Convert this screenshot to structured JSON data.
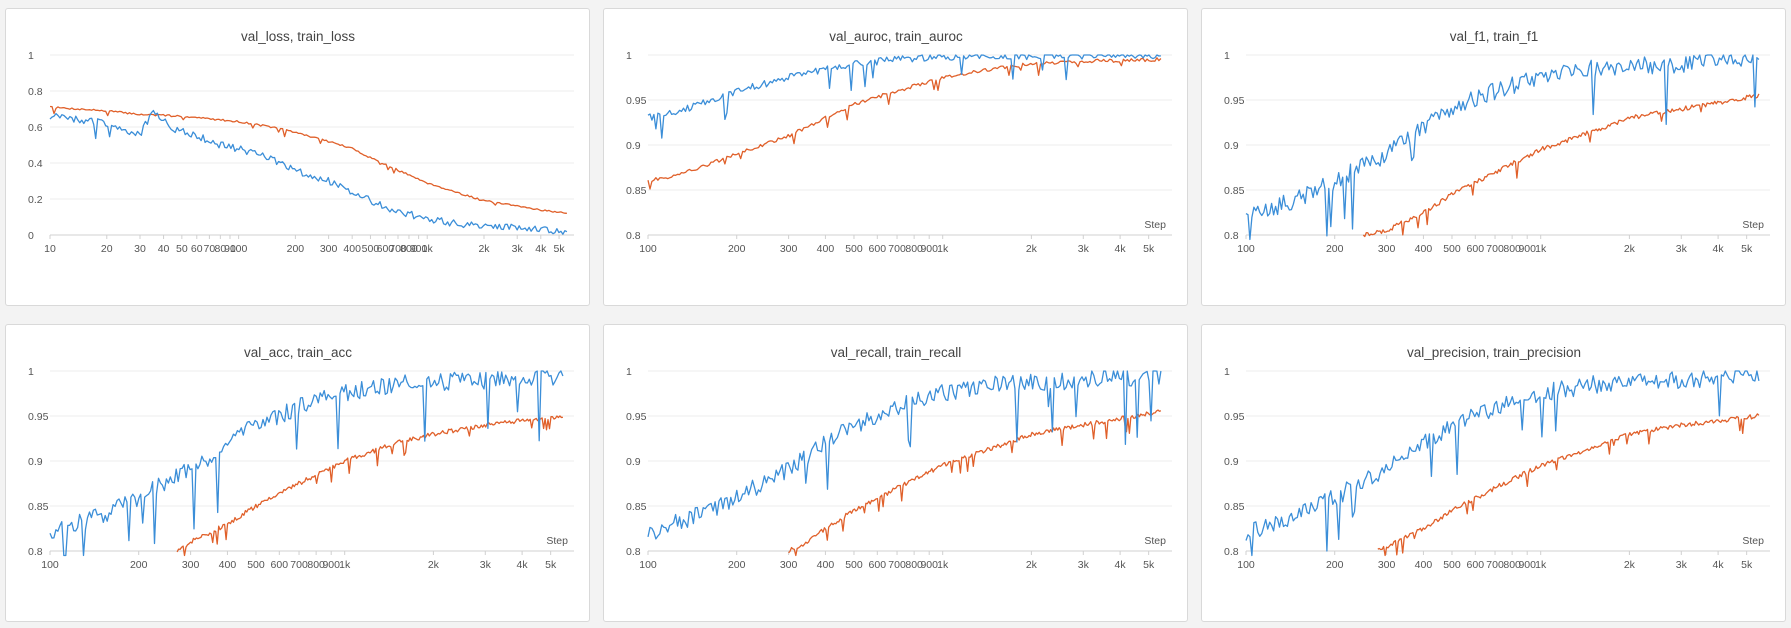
{
  "colors": {
    "val": "#3b8ed8",
    "train": "#e0602a"
  },
  "step_label": "Step",
  "chart_data": [
    {
      "type": "line",
      "title": "val_loss, train_loss",
      "xscale": "log",
      "xlim": [
        10,
        6000
      ],
      "ylim": [
        0,
        1
      ],
      "yticks": [
        0,
        0.2,
        0.4,
        0.6,
        0.8,
        1
      ],
      "ytick_labels": [
        "0",
        "0.2",
        "0.4",
        "0.6",
        "0.8",
        "1"
      ],
      "xticks": [
        10,
        20,
        30,
        40,
        50,
        60,
        70,
        80,
        90,
        100,
        200,
        300,
        400,
        500,
        600,
        700,
        800,
        900,
        1000,
        2000,
        3000,
        4000,
        5000
      ],
      "xtick_labels": [
        "10",
        "20",
        "30",
        "40",
        "50",
        "60",
        "70",
        "80",
        "90",
        "100",
        "200",
        "300",
        "400",
        "500",
        "600",
        "700",
        "800",
        "900",
        "1k",
        "2k",
        "3k",
        "4k",
        "5k"
      ],
      "show_step_label": false,
      "series": [
        {
          "key": "val",
          "x": [
            10,
            20,
            30,
            35,
            45,
            60,
            80,
            100,
            150,
            200,
            300,
            400,
            500,
            700,
            1000,
            1500,
            2000,
            3000,
            4000,
            5500
          ],
          "y": [
            0.66,
            0.62,
            0.56,
            0.68,
            0.59,
            0.55,
            0.5,
            0.48,
            0.42,
            0.36,
            0.3,
            0.24,
            0.19,
            0.13,
            0.09,
            0.06,
            0.05,
            0.04,
            0.03,
            0.02
          ],
          "noise": 0.04
        },
        {
          "key": "train",
          "x": [
            10,
            20,
            30,
            50,
            100,
            150,
            200,
            300,
            400,
            500,
            700,
            1000,
            1500,
            2000,
            3000,
            4000,
            5500
          ],
          "y": [
            0.71,
            0.69,
            0.67,
            0.66,
            0.63,
            0.6,
            0.57,
            0.52,
            0.48,
            0.43,
            0.36,
            0.29,
            0.23,
            0.19,
            0.16,
            0.14,
            0.12
          ],
          "noise": 0.01
        }
      ]
    },
    {
      "type": "line",
      "title": "val_auroc, train_auroc",
      "xscale": "log",
      "xlim": [
        100,
        6000
      ],
      "ylim": [
        0.8,
        1
      ],
      "yticks": [
        0.8,
        0.85,
        0.9,
        0.95,
        1
      ],
      "ytick_labels": [
        "0.8",
        "0.85",
        "0.9",
        "0.95",
        "1"
      ],
      "xticks": [
        100,
        200,
        300,
        400,
        500,
        600,
        700,
        800,
        900,
        1000,
        2000,
        3000,
        4000,
        5000
      ],
      "xtick_labels": [
        "100",
        "200",
        "300",
        "400",
        "500",
        "600",
        "700",
        "800",
        "900",
        "1k",
        "2k",
        "3k",
        "4k",
        "5k"
      ],
      "show_step_label": true,
      "series": [
        {
          "key": "val",
          "x": [
            100,
            120,
            150,
            200,
            300,
            400,
            500,
            700,
            1000,
            1500,
            2000,
            3000,
            5500
          ],
          "y": [
            0.93,
            0.935,
            0.945,
            0.96,
            0.975,
            0.985,
            0.99,
            0.995,
            0.998,
            0.999,
            0.999,
            0.999,
            1.0
          ],
          "noise": 0.008
        },
        {
          "key": "train",
          "x": [
            100,
            120,
            150,
            200,
            300,
            400,
            500,
            700,
            1000,
            1500,
            2000,
            3000,
            5500
          ],
          "y": [
            0.86,
            0.865,
            0.875,
            0.89,
            0.91,
            0.93,
            0.945,
            0.96,
            0.975,
            0.985,
            0.99,
            0.993,
            0.995
          ],
          "noise": 0.004
        }
      ]
    },
    {
      "type": "line",
      "title": "val_f1, train_f1",
      "xscale": "log",
      "xlim": [
        100,
        6000
      ],
      "ylim": [
        0.8,
        1
      ],
      "yticks": [
        0.8,
        0.85,
        0.9,
        0.95,
        1
      ],
      "ytick_labels": [
        "0.8",
        "0.85",
        "0.9",
        "0.95",
        "1"
      ],
      "xticks": [
        100,
        200,
        300,
        400,
        500,
        600,
        700,
        800,
        900,
        1000,
        2000,
        3000,
        4000,
        5000
      ],
      "xtick_labels": [
        "100",
        "200",
        "300",
        "400",
        "500",
        "600",
        "700",
        "800",
        "900",
        "1k",
        "2k",
        "3k",
        "4k",
        "5k"
      ],
      "show_step_label": true,
      "series": [
        {
          "key": "val",
          "x": [
            100,
            150,
            200,
            300,
            400,
            500,
            700,
            1000,
            1500,
            2000,
            3000,
            5500
          ],
          "y": [
            0.82,
            0.84,
            0.86,
            0.89,
            0.92,
            0.94,
            0.96,
            0.975,
            0.985,
            0.988,
            0.99,
            0.995
          ],
          "noise": 0.02
        },
        {
          "key": "train",
          "x": [
            250,
            300,
            400,
            500,
            700,
            1000,
            1500,
            2000,
            3000,
            5500
          ],
          "y": [
            0.8,
            0.805,
            0.825,
            0.845,
            0.87,
            0.895,
            0.915,
            0.93,
            0.94,
            0.955
          ],
          "noise": 0.005
        }
      ]
    },
    {
      "type": "line",
      "title": "val_acc, train_acc",
      "xscale": "log",
      "xlim": [
        100,
        6000
      ],
      "ylim": [
        0.8,
        1
      ],
      "yticks": [
        0.8,
        0.85,
        0.9,
        0.95,
        1
      ],
      "ytick_labels": [
        "0.8",
        "0.85",
        "0.9",
        "0.95",
        "1"
      ],
      "xticks": [
        100,
        200,
        300,
        400,
        500,
        600,
        700,
        800,
        900,
        1000,
        2000,
        3000,
        4000,
        5000
      ],
      "xtick_labels": [
        "100",
        "200",
        "300",
        "400",
        "500",
        "600",
        "700",
        "800",
        "900",
        "1k",
        "2k",
        "3k",
        "4k",
        "5k"
      ],
      "show_step_label": true,
      "series": [
        {
          "key": "val",
          "x": [
            100,
            150,
            200,
            300,
            400,
            500,
            700,
            1000,
            1500,
            2000,
            3000,
            5500
          ],
          "y": [
            0.82,
            0.84,
            0.86,
            0.89,
            0.92,
            0.94,
            0.96,
            0.975,
            0.985,
            0.988,
            0.99,
            0.995
          ],
          "noise": 0.02
        },
        {
          "key": "train",
          "x": [
            270,
            300,
            400,
            500,
            700,
            1000,
            1500,
            2000,
            3000,
            5500
          ],
          "y": [
            0.8,
            0.81,
            0.83,
            0.85,
            0.875,
            0.9,
            0.92,
            0.93,
            0.94,
            0.95
          ],
          "noise": 0.005
        }
      ]
    },
    {
      "type": "line",
      "title": "val_recall, train_recall",
      "xscale": "log",
      "xlim": [
        100,
        6000
      ],
      "ylim": [
        0.8,
        1
      ],
      "yticks": [
        0.8,
        0.85,
        0.9,
        0.95,
        1
      ],
      "ytick_labels": [
        "0.8",
        "0.85",
        "0.9",
        "0.95",
        "1"
      ],
      "xticks": [
        100,
        200,
        300,
        400,
        500,
        600,
        700,
        800,
        900,
        1000,
        2000,
        3000,
        4000,
        5000
      ],
      "xtick_labels": [
        "100",
        "200",
        "300",
        "400",
        "500",
        "600",
        "700",
        "800",
        "900",
        "1k",
        "2k",
        "3k",
        "4k",
        "5k"
      ],
      "show_step_label": true,
      "series": [
        {
          "key": "val",
          "x": [
            100,
            150,
            200,
            300,
            400,
            500,
            700,
            1000,
            1500,
            2000,
            3000,
            5500
          ],
          "y": [
            0.82,
            0.84,
            0.86,
            0.89,
            0.92,
            0.94,
            0.96,
            0.975,
            0.985,
            0.988,
            0.99,
            0.995
          ],
          "noise": 0.02
        },
        {
          "key": "train",
          "x": [
            300,
            350,
            400,
            500,
            700,
            1000,
            1500,
            2000,
            3000,
            5500
          ],
          "y": [
            0.8,
            0.81,
            0.825,
            0.845,
            0.87,
            0.895,
            0.915,
            0.93,
            0.94,
            0.955
          ],
          "noise": 0.005
        }
      ]
    },
    {
      "type": "line",
      "title": "val_precision, train_precision",
      "xscale": "log",
      "xlim": [
        100,
        6000
      ],
      "ylim": [
        0.8,
        1
      ],
      "yticks": [
        0.8,
        0.85,
        0.9,
        0.95,
        1
      ],
      "ytick_labels": [
        "0.8",
        "0.85",
        "0.9",
        "0.95",
        "1"
      ],
      "xticks": [
        100,
        200,
        300,
        400,
        500,
        600,
        700,
        800,
        900,
        1000,
        2000,
        3000,
        4000,
        5000
      ],
      "xtick_labels": [
        "100",
        "200",
        "300",
        "400",
        "500",
        "600",
        "700",
        "800",
        "900",
        "1k",
        "2k",
        "3k",
        "4k",
        "5k"
      ],
      "show_step_label": true,
      "series": [
        {
          "key": "val",
          "x": [
            100,
            150,
            200,
            300,
            400,
            500,
            700,
            1000,
            1500,
            2000,
            3000,
            5500
          ],
          "y": [
            0.82,
            0.84,
            0.86,
            0.89,
            0.92,
            0.94,
            0.96,
            0.975,
            0.985,
            0.988,
            0.99,
            0.995
          ],
          "noise": 0.02
        },
        {
          "key": "train",
          "x": [
            280,
            300,
            400,
            500,
            700,
            1000,
            1500,
            2000,
            3000,
            5500
          ],
          "y": [
            0.8,
            0.805,
            0.825,
            0.845,
            0.87,
            0.895,
            0.915,
            0.93,
            0.94,
            0.95
          ],
          "noise": 0.005
        }
      ]
    }
  ]
}
